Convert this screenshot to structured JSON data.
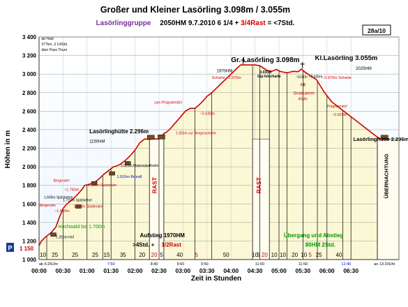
{
  "chart_data": {
    "type": "line",
    "title": "Großer und Kleiner Lasörling 3.098m / 3.055m",
    "subtitle": {
      "group": "Lasörlinggruppe",
      "details": "2050HM   9.7.2010   6 1/4 + ",
      "rast": "3/4Rast",
      "total": " = <7Std."
    },
    "page_badge": "28a/10",
    "xlabel": "Zeit in Stunden",
    "ylabel": "Höhen in m",
    "xlim": [
      0,
      7.5
    ],
    "ylim": [
      1000,
      3400
    ],
    "x_ticks": [
      {
        "v": 0,
        "label": "00:00"
      },
      {
        "v": 0.5,
        "label": "00:30"
      },
      {
        "v": 1,
        "label": "01:00"
      },
      {
        "v": 1.5,
        "label": "01:30"
      },
      {
        "v": 2,
        "label": "02:00"
      },
      {
        "v": 2.5,
        "label": "02:30"
      },
      {
        "v": 3,
        "label": "03:00"
      },
      {
        "v": 3.5,
        "label": "03:30"
      },
      {
        "v": 4,
        "label": "04:00"
      },
      {
        "v": 4.5,
        "label": "04:30"
      },
      {
        "v": 5,
        "label": "05:00"
      },
      {
        "v": 5.5,
        "label": "05:30"
      },
      {
        "v": 6,
        "label": "06:00"
      },
      {
        "v": 6.5,
        "label": "06:30"
      }
    ],
    "y_ticks": [
      {
        "v": 1000,
        "label": "1 000"
      },
      {
        "v": 1200,
        "label": "1 200"
      },
      {
        "v": 1400,
        "label": "1 400"
      },
      {
        "v": 1600,
        "label": "1 600"
      },
      {
        "v": 1800,
        "label": "1 800"
      },
      {
        "v": 2000,
        "label": "2 000"
      },
      {
        "v": 2200,
        "label": "2 200"
      },
      {
        "v": 2400,
        "label": "2 400"
      },
      {
        "v": 2600,
        "label": "2 600"
      },
      {
        "v": 2800,
        "label": "2 800"
      },
      {
        "v": 3000,
        "label": "3 000"
      },
      {
        "v": 3200,
        "label": "3 200"
      },
      {
        "v": 3400,
        "label": "3 400"
      }
    ],
    "grid": true,
    "series": [
      {
        "color": "#cc0000",
        "x": [
          0,
          0.05,
          0.15,
          0.25,
          0.35,
          0.42,
          0.5,
          0.58,
          0.7,
          0.8,
          0.9,
          0.95,
          1.05,
          1.15,
          1.25,
          1.35,
          1.45,
          1.55,
          1.62,
          1.7,
          1.8,
          1.9,
          2.0,
          2.1,
          2.2,
          2.3,
          2.4,
          2.5,
          2.55,
          2.6,
          2.65,
          2.75,
          2.85,
          2.95,
          3.05,
          3.15,
          3.25,
          3.32,
          3.4,
          3.5,
          3.6,
          3.7,
          3.8,
          3.9,
          4.0,
          4.1,
          4.2,
          4.3,
          4.4,
          4.5,
          4.6,
          4.75,
          4.85,
          4.95,
          5.02,
          5.1,
          5.17,
          5.22,
          5.3,
          5.4,
          5.47,
          5.52,
          5.6,
          5.68,
          5.78,
          5.83,
          5.95,
          6.1,
          6.25,
          6.3,
          6.4,
          6.5,
          6.6,
          6.7,
          6.8,
          6.95,
          7.05,
          7.15,
          7.3
        ],
        "y": [
          1150,
          1200,
          1250,
          1290,
          1350,
          1450,
          1550,
          1600,
          1650,
          1700,
          1760,
          1800,
          1810,
          1830,
          1870,
          1920,
          1960,
          2000,
          2010,
          2030,
          2070,
          2120,
          2180,
          2260,
          2300,
          2296,
          2300,
          2300,
          2310,
          2360,
          2370,
          2420,
          2480,
          2540,
          2600,
          2630,
          2630,
          2660,
          2700,
          2760,
          2800,
          2850,
          2900,
          2950,
          3000,
          3050,
          3098,
          3098,
          3098,
          3098,
          3090,
          3040,
          3030,
          3050,
          3030,
          3020,
          3015,
          3020,
          3030,
          3025,
          3055,
          3030,
          3000,
          2975,
          2940,
          2900,
          2800,
          2700,
          2640,
          2620,
          2580,
          2540,
          2500,
          2460,
          2420,
          2360,
          2320,
          2296,
          2296
        ]
      }
    ],
    "labels": [
      {
        "text": "Gr. Lasörling 3.098m",
        "x": 4.0,
        "y": 3130,
        "bold": true,
        "size": 10
      },
      {
        "text": "1970HM",
        "x": 3.7,
        "y": 3020,
        "size": 6
      },
      {
        "text": "Kl.Lasörling 3.055m",
        "x": 5.75,
        "y": 3150,
        "bold": true,
        "size": 9.5
      },
      {
        "text": "2025HM",
        "x": 6.6,
        "y": 3045,
        "size": 6
      },
      {
        "text": "Lasörlinghütte 2.296m",
        "x": 1.05,
        "y": 2360,
        "bold": true,
        "size": 8
      },
      {
        "text": "1150HM",
        "x": 1.05,
        "y": 2260,
        "size": 6
      },
      {
        "text": "Lasörlinghütte 2.296m",
        "x": 6.55,
        "y": 2280,
        "bold": true,
        "size": 7.5
      },
      {
        "text": "3.030m",
        "x": 4.6,
        "y": 3010,
        "size": 5,
        "bold": true
      },
      {
        "text": "Gip-felscharte",
        "x": 4.55,
        "y": 2965,
        "size": 5,
        "bold": true
      },
      {
        "text": "~3.015~",
        "x": 5.35,
        "y": 2955,
        "size": 5
      },
      {
        "text": "~3.030m",
        "x": 5.62,
        "y": 2960,
        "size": 5
      },
      {
        "text": "I-II",
        "x": 5.45,
        "y": 2870,
        "size": 6,
        "bold": true,
        "color": "#cc0000"
      },
      {
        "text": "Gratkamm",
        "x": 5.3,
        "y": 2780,
        "size": 6.5,
        "color": "#cc0000"
      },
      {
        "text": "45Min",
        "x": 5.4,
        "y": 2720,
        "size": 5,
        "color": "#cc0000"
      },
      {
        "text": "Scharte ~2.975m",
        "x": 3.6,
        "y": 2950,
        "size": 5.5,
        "color": "#cc0000"
      },
      {
        "text": "~2.975m Scharte",
        "x": 5.9,
        "y": 2950,
        "size": 5.5,
        "color": "#cc0000"
      },
      {
        "text": "zum Prägratentörl",
        "x": 2.4,
        "y": 2680,
        "size": 5,
        "color": "#cc0000"
      },
      {
        "text": "~2.630m",
        "x": 3.35,
        "y": 2560,
        "size": 5.5,
        "color": "#cc0000"
      },
      {
        "text": "Prägratentörl",
        "x": 6.0,
        "y": 2640,
        "size": 5,
        "color": "#cc0000"
      },
      {
        "text": "~2.620m",
        "x": 6.1,
        "y": 2550,
        "size": 5.5,
        "color": "#cc0000"
      },
      {
        "text": "2.355m zur Bergerscharte",
        "x": 2.85,
        "y": 2350,
        "size": 5,
        "color": "#cc0000"
      },
      {
        "text": "2.020m Materialseilbahn",
        "x": 1.7,
        "y": 2000,
        "size": 5
      },
      {
        "text": "1.910m Bründl",
        "x": 1.62,
        "y": 1880,
        "size": 5.5,
        "color": "#0000cc"
      },
      {
        "text": "1.804m Raineralm",
        "x": 1.02,
        "y": 1790,
        "size": 5,
        "color": "#cc0000"
      },
      {
        "text": "Bergeralm",
        "x": 0.3,
        "y": 1840,
        "size": 5,
        "color": "#cc0000"
      },
      {
        "text": "~1.760m",
        "x": 0.52,
        "y": 1740,
        "size": 5.5,
        "color": "#cc0000"
      },
      {
        "text": "1.665m Spitzkehre",
        "x": 0.1,
        "y": 1660,
        "size": 5
      },
      {
        "text": "1.710m Spitzkehre",
        "x": 0.5,
        "y": 1630,
        "size": 5
      },
      {
        "text": "Bergeralm",
        "x": 0.01,
        "y": 1570,
        "size": 5,
        "color": "#cc0000"
      },
      {
        "text": "1.553m Stadleralm",
        "x": 0.72,
        "y": 1560,
        "size": 5,
        "color": "#cc0000"
      },
      {
        "text": "~1.540m",
        "x": 0.32,
        "y": 1510,
        "size": 5.5,
        "color": "#cc0000"
      },
      {
        "text": "Hochwald bis 1.700m",
        "x": 0.4,
        "y": 1340,
        "size": 7,
        "color": "#009900"
      },
      {
        "text": "1.250m Hof",
        "x": 0.35,
        "y": 1230,
        "size": 5
      },
      {
        "text": "Aufstieg 1970HM",
        "x": 2.1,
        "y": 1240,
        "bold": true,
        "size": 8
      },
      {
        "text": ">4Std. + ",
        "x": 1.95,
        "y": 1140,
        "bold": true,
        "size": 8
      },
      {
        "text": "1/2Rast",
        "x": 2.55,
        "y": 1140,
        "bold": true,
        "size": 8,
        "color": "#cc0000"
      },
      {
        "text": "Übergang und Abstieg",
        "x": 5.1,
        "y": 1240,
        "bold": true,
        "size": 8,
        "color": "#009900"
      },
      {
        "text": "80HM  2Std.",
        "x": 5.55,
        "y": 1140,
        "bold": true,
        "size": 8,
        "color": "#009900"
      },
      {
        "text": "ab Haid",
        "x": 0.05,
        "y": 3370,
        "size": 5
      },
      {
        "text": "377km, 3 1/4Std.",
        "x": 0.05,
        "y": 3310,
        "size": 5
      },
      {
        "text": "über Pass Thurn",
        "x": 0.05,
        "y": 3250,
        "size": 5
      }
    ],
    "rast_bands": [
      {
        "x0": 2.3,
        "x1": 2.6,
        "label": "RAST",
        "color": "#cc0000"
      },
      {
        "x0": 4.45,
        "x1": 4.8,
        "label": "RAST",
        "color": "#cc0000"
      },
      {
        "x0": 7.05,
        "x1": 7.5,
        "label": "ÜBERNACHTUNG",
        "color": "#000000"
      }
    ],
    "segment_dividers": [
      0.16,
      0.5,
      1,
      1.33,
      1.5,
      2.0,
      2.3,
      2.5,
      2.6,
      3.25,
      3.6,
      4.45,
      4.6,
      4.8,
      5.0,
      5.17,
      5.5,
      5.8,
      6.0,
      6.33,
      6.5,
      7.05
    ],
    "segment_labels": [
      {
        "x": 0.08,
        "text": "10",
        "color": "#000000"
      },
      {
        "x": 0.33,
        "text": "25",
        "color": "#000000"
      },
      {
        "x": 0.75,
        "text": "25",
        "color": "#000000"
      },
      {
        "x": 1.17,
        "text": "25",
        "color": "#000000"
      },
      {
        "x": 1.41,
        "text": "15",
        "color": "#000000"
      },
      {
        "x": 1.75,
        "text": "35",
        "color": "#000000"
      },
      {
        "x": 2.15,
        "text": "20",
        "color": "#000000"
      },
      {
        "x": 2.4,
        "text": "20",
        "color": "#cc0000"
      },
      {
        "x": 2.55,
        "text": "5",
        "color": "#000000"
      },
      {
        "x": 2.93,
        "text": "40",
        "color": "#000000"
      },
      {
        "x": 3.28,
        "text": "5",
        "color": "#cc0000"
      },
      {
        "x": 3.9,
        "text": "50",
        "color": "#000000"
      },
      {
        "x": 4.5,
        "text": "10",
        "color": "#000000"
      },
      {
        "x": 4.57,
        "text": "5",
        "color": "#000000"
      },
      {
        "x": 4.7,
        "text": "20",
        "color": "#cc0000"
      },
      {
        "x": 4.9,
        "text": "10",
        "color": "#000000"
      },
      {
        "x": 5.08,
        "text": "10",
        "color": "#000000"
      },
      {
        "x": 5.33,
        "text": "20",
        "color": "#000000"
      },
      {
        "x": 5.52,
        "text": "10",
        "color": "#000000"
      },
      {
        "x": 5.65,
        "text": "5",
        "color": "#cc0000"
      },
      {
        "x": 5.83,
        "text": "25",
        "color": "#000000"
      },
      {
        "x": 6.25,
        "text": "40",
        "color": "#000000"
      }
    ],
    "time_annotations": [
      {
        "x": 0.0,
        "text": "ab 6:25Uhr",
        "color": "#000000"
      },
      {
        "x": 1.5,
        "text": "7:50",
        "color": "#0000cc"
      },
      {
        "x": 2.4,
        "text": "8:40",
        "color": "#000000"
      },
      {
        "x": 2.95,
        "text": "9:00",
        "color": "#000000"
      },
      {
        "x": 3.45,
        "text": "9:50",
        "color": "#000000"
      },
      {
        "x": 4.6,
        "text": "11:00",
        "color": "#000000"
      },
      {
        "x": 5.5,
        "text": "11:50",
        "color": "#000000"
      },
      {
        "x": 6.4,
        "text": "12:40",
        "color": "#0000cc"
      },
      {
        "x": 7.2,
        "text": "an 13:20Uhr",
        "color": "#000000"
      }
    ],
    "start_height": {
      "letter": "P",
      "value": "1 150"
    }
  }
}
